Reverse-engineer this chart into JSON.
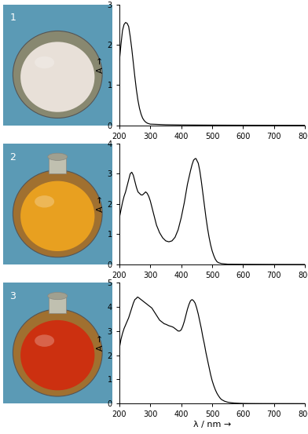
{
  "panel1": {
    "label": "1",
    "ylim": [
      0,
      3.0
    ],
    "yticks": [
      0,
      1.0,
      2.0,
      3.0
    ],
    "ylabel": "A →",
    "photo_main_color": "#e8e0d8",
    "photo_rim_color": "#888870",
    "photo_bg_color": "#5b9ab5",
    "curve": [
      [
        200,
        1.6
      ],
      [
        205,
        2.0
      ],
      [
        210,
        2.35
      ],
      [
        215,
        2.5
      ],
      [
        220,
        2.55
      ],
      [
        225,
        2.53
      ],
      [
        230,
        2.45
      ],
      [
        235,
        2.2
      ],
      [
        240,
        1.9
      ],
      [
        245,
        1.55
      ],
      [
        250,
        1.2
      ],
      [
        255,
        0.88
      ],
      [
        260,
        0.62
      ],
      [
        265,
        0.42
      ],
      [
        270,
        0.28
      ],
      [
        275,
        0.18
      ],
      [
        280,
        0.12
      ],
      [
        285,
        0.08
      ],
      [
        290,
        0.055
      ],
      [
        295,
        0.04
      ],
      [
        300,
        0.03
      ],
      [
        350,
        0.015
      ],
      [
        400,
        0.01
      ],
      [
        500,
        0.005
      ],
      [
        600,
        0.003
      ],
      [
        700,
        0.002
      ],
      [
        800,
        0.001
      ]
    ]
  },
  "panel2": {
    "label": "2",
    "ylim": [
      0,
      4.0
    ],
    "yticks": [
      0,
      1.0,
      2.0,
      3.0,
      4.0
    ],
    "ylabel": "A →",
    "photo_main_color": "#e8a020",
    "photo_rim_color": "#a07030",
    "photo_bg_color": "#5b9ab5",
    "curve": [
      [
        200,
        1.55
      ],
      [
        205,
        1.8
      ],
      [
        210,
        2.05
      ],
      [
        215,
        2.25
      ],
      [
        220,
        2.4
      ],
      [
        225,
        2.6
      ],
      [
        230,
        2.8
      ],
      [
        235,
        3.0
      ],
      [
        240,
        3.05
      ],
      [
        245,
        2.95
      ],
      [
        250,
        2.75
      ],
      [
        255,
        2.55
      ],
      [
        260,
        2.4
      ],
      [
        265,
        2.35
      ],
      [
        270,
        2.3
      ],
      [
        275,
        2.3
      ],
      [
        280,
        2.35
      ],
      [
        285,
        2.4
      ],
      [
        290,
        2.35
      ],
      [
        295,
        2.25
      ],
      [
        300,
        2.1
      ],
      [
        310,
        1.7
      ],
      [
        320,
        1.3
      ],
      [
        330,
        1.05
      ],
      [
        340,
        0.88
      ],
      [
        350,
        0.78
      ],
      [
        360,
        0.75
      ],
      [
        370,
        0.78
      ],
      [
        380,
        0.9
      ],
      [
        390,
        1.15
      ],
      [
        400,
        1.55
      ],
      [
        410,
        2.05
      ],
      [
        420,
        2.65
      ],
      [
        430,
        3.1
      ],
      [
        435,
        3.3
      ],
      [
        440,
        3.45
      ],
      [
        445,
        3.5
      ],
      [
        448,
        3.5
      ],
      [
        450,
        3.45
      ],
      [
        455,
        3.35
      ],
      [
        460,
        3.1
      ],
      [
        465,
        2.75
      ],
      [
        470,
        2.35
      ],
      [
        475,
        1.95
      ],
      [
        480,
        1.55
      ],
      [
        485,
        1.2
      ],
      [
        490,
        0.9
      ],
      [
        495,
        0.65
      ],
      [
        500,
        0.45
      ],
      [
        505,
        0.3
      ],
      [
        510,
        0.18
      ],
      [
        515,
        0.1
      ],
      [
        520,
        0.06
      ],
      [
        530,
        0.03
      ],
      [
        550,
        0.01
      ],
      [
        600,
        0.005
      ],
      [
        700,
        0.002
      ],
      [
        800,
        0.001
      ]
    ]
  },
  "panel3": {
    "label": "3",
    "ylim": [
      0,
      5.0
    ],
    "yticks": [
      0,
      1.0,
      2.0,
      3.0,
      4.0,
      5.0
    ],
    "ylabel": "A →",
    "photo_main_color": "#cc3010",
    "photo_rim_color": "#a07030",
    "photo_bg_color": "#5b9ab5",
    "curve": [
      [
        200,
        2.3
      ],
      [
        205,
        2.65
      ],
      [
        210,
        2.9
      ],
      [
        215,
        3.1
      ],
      [
        220,
        3.25
      ],
      [
        225,
        3.4
      ],
      [
        230,
        3.55
      ],
      [
        235,
        3.75
      ],
      [
        240,
        3.95
      ],
      [
        245,
        4.15
      ],
      [
        250,
        4.3
      ],
      [
        255,
        4.35
      ],
      [
        258,
        4.4
      ],
      [
        260,
        4.4
      ],
      [
        265,
        4.35
      ],
      [
        270,
        4.3
      ],
      [
        275,
        4.25
      ],
      [
        280,
        4.2
      ],
      [
        285,
        4.15
      ],
      [
        290,
        4.1
      ],
      [
        295,
        4.05
      ],
      [
        300,
        4.0
      ],
      [
        305,
        3.95
      ],
      [
        310,
        3.85
      ],
      [
        315,
        3.75
      ],
      [
        320,
        3.65
      ],
      [
        325,
        3.55
      ],
      [
        330,
        3.45
      ],
      [
        335,
        3.4
      ],
      [
        340,
        3.35
      ],
      [
        345,
        3.3
      ],
      [
        350,
        3.28
      ],
      [
        355,
        3.25
      ],
      [
        360,
        3.22
      ],
      [
        365,
        3.2
      ],
      [
        370,
        3.18
      ],
      [
        375,
        3.15
      ],
      [
        380,
        3.1
      ],
      [
        385,
        3.05
      ],
      [
        390,
        3.0
      ],
      [
        395,
        3.0
      ],
      [
        400,
        3.05
      ],
      [
        405,
        3.2
      ],
      [
        410,
        3.4
      ],
      [
        415,
        3.65
      ],
      [
        420,
        3.9
      ],
      [
        425,
        4.1
      ],
      [
        430,
        4.25
      ],
      [
        435,
        4.3
      ],
      [
        440,
        4.25
      ],
      [
        445,
        4.15
      ],
      [
        450,
        3.95
      ],
      [
        455,
        3.7
      ],
      [
        460,
        3.4
      ],
      [
        465,
        3.1
      ],
      [
        470,
        2.75
      ],
      [
        475,
        2.45
      ],
      [
        480,
        2.1
      ],
      [
        485,
        1.8
      ],
      [
        490,
        1.5
      ],
      [
        495,
        1.2
      ],
      [
        500,
        0.95
      ],
      [
        505,
        0.75
      ],
      [
        510,
        0.58
      ],
      [
        515,
        0.44
      ],
      [
        520,
        0.33
      ],
      [
        525,
        0.24
      ],
      [
        530,
        0.17
      ],
      [
        540,
        0.1
      ],
      [
        550,
        0.06
      ],
      [
        560,
        0.04
      ],
      [
        570,
        0.025
      ],
      [
        580,
        0.018
      ],
      [
        590,
        0.012
      ],
      [
        600,
        0.008
      ],
      [
        620,
        0.005
      ],
      [
        650,
        0.003
      ],
      [
        700,
        0.002
      ],
      [
        750,
        0.001
      ],
      [
        800,
        0.0
      ]
    ]
  },
  "xlim": [
    200,
    800
  ],
  "xticks": [
    200,
    300,
    400,
    500,
    600,
    700,
    800
  ],
  "xlabel": "λ / nm →",
  "line_color": "#000000",
  "bg_color": "#ffffff"
}
